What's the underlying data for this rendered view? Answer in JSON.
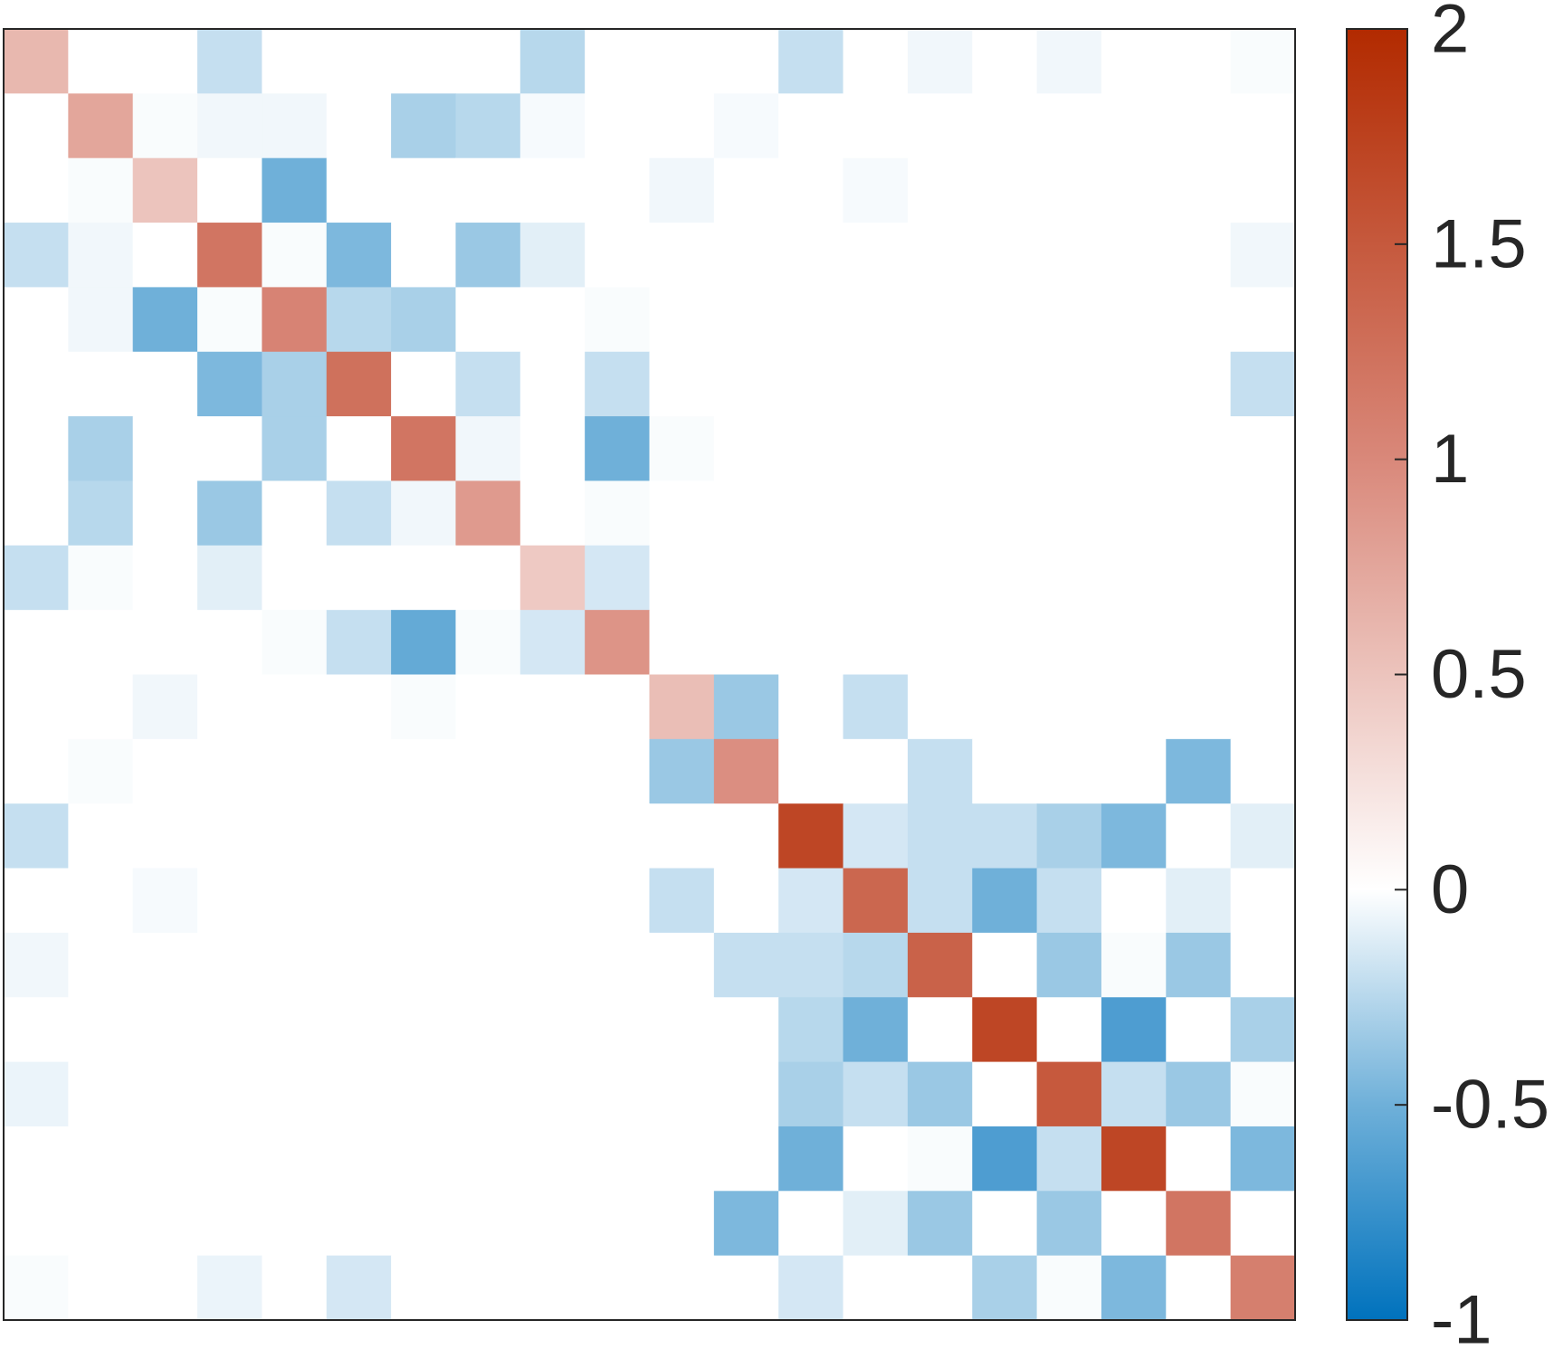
{
  "chart_data": {
    "type": "heatmap",
    "rows": 20,
    "cols": 20,
    "title": "",
    "xlabel": "",
    "ylabel": "",
    "colorbar": {
      "limits": [
        -1,
        2
      ],
      "ticks": [
        {
          "value": 2,
          "label": "2"
        },
        {
          "value": 1.5,
          "label": "1.5"
        },
        {
          "value": 1,
          "label": "1"
        },
        {
          "value": 0.5,
          "label": "0.5"
        },
        {
          "value": 0,
          "label": "0"
        },
        {
          "value": -0.5,
          "label": "-0.5"
        },
        {
          "value": -1,
          "label": "-1"
        }
      ],
      "color_neg": "#0072bd",
      "color_zero": "#ffffff",
      "color_pos": "#b22a00"
    },
    "values": [
      [
        0.6,
        0,
        0,
        -0.2,
        0,
        0,
        0,
        0,
        -0.25,
        0,
        0,
        0,
        -0.2,
        0,
        -0.05,
        0,
        -0.05,
        0,
        0,
        -0.02
      ],
      [
        0,
        0.75,
        -0.02,
        -0.05,
        -0.05,
        0,
        -0.3,
        -0.25,
        -0.03,
        0,
        0,
        -0.03,
        0,
        0,
        0,
        0,
        0,
        0,
        0,
        0
      ],
      [
        0,
        -0.02,
        0.5,
        0,
        -0.5,
        0,
        0,
        0,
        0,
        0,
        -0.05,
        0,
        0,
        -0.03,
        0,
        0,
        0,
        0,
        0,
        0
      ],
      [
        -0.2,
        -0.05,
        0,
        1.2,
        -0.02,
        -0.45,
        0,
        -0.35,
        -0.1,
        0,
        0,
        0,
        0,
        0,
        0,
        0,
        0,
        0,
        0,
        -0.05
      ],
      [
        0,
        -0.05,
        -0.5,
        -0.02,
        1.05,
        -0.25,
        -0.3,
        0,
        0,
        -0.02,
        0,
        0,
        0,
        0,
        0,
        0,
        0,
        0,
        0,
        0
      ],
      [
        0,
        0,
        0,
        -0.45,
        -0.3,
        1.25,
        0,
        -0.2,
        0,
        -0.2,
        0,
        0,
        0,
        0,
        0,
        0,
        0,
        0,
        0,
        -0.2
      ],
      [
        0,
        -0.3,
        0,
        0,
        -0.3,
        0,
        1.2,
        -0.05,
        0,
        -0.5,
        -0.02,
        0,
        0,
        0,
        0,
        0,
        0,
        0,
        0,
        0
      ],
      [
        0,
        -0.25,
        0,
        -0.35,
        0,
        -0.2,
        -0.05,
        0.85,
        0,
        -0.02,
        0,
        0,
        0,
        0,
        0,
        0,
        0,
        0,
        0,
        0
      ],
      [
        -0.2,
        -0.02,
        0,
        -0.1,
        0,
        0,
        0,
        0,
        0.45,
        -0.15,
        0,
        0,
        0,
        0,
        0,
        0,
        0,
        0,
        0,
        0
      ],
      [
        0,
        0,
        0,
        0,
        -0.02,
        -0.2,
        -0.55,
        -0.02,
        -0.15,
        0.9,
        0,
        0,
        0,
        0,
        0,
        0,
        0,
        0,
        0,
        0
      ],
      [
        0,
        0,
        -0.05,
        0,
        0,
        0,
        -0.02,
        0,
        0,
        0,
        0.55,
        -0.35,
        0,
        -0.2,
        0,
        0,
        0,
        0,
        0,
        0
      ],
      [
        0,
        -0.02,
        0,
        0,
        0,
        0,
        0,
        0,
        0,
        0,
        -0.35,
        0.95,
        0,
        0,
        -0.2,
        0,
        0,
        0,
        -0.45,
        0
      ],
      [
        -0.2,
        0,
        0,
        0,
        0,
        0,
        0,
        0,
        0,
        0,
        0,
        0,
        1.7,
        -0.15,
        -0.2,
        -0.2,
        -0.3,
        -0.45,
        0,
        -0.1
      ],
      [
        0,
        0,
        -0.03,
        0,
        0,
        0,
        0,
        0,
        0,
        0,
        -0.2,
        0,
        -0.15,
        1.35,
        -0.2,
        -0.5,
        -0.2,
        0,
        -0.1,
        0
      ],
      [
        -0.05,
        0,
        0,
        0,
        0,
        0,
        0,
        0,
        0,
        0,
        0,
        -0.2,
        -0.2,
        -0.25,
        1.4,
        0,
        -0.35,
        -0.02,
        -0.35,
        0
      ],
      [
        0,
        0,
        0,
        0,
        0,
        0,
        0,
        0,
        0,
        0,
        0,
        0,
        -0.25,
        -0.5,
        0,
        1.7,
        0,
        -0.65,
        0,
        -0.3
      ],
      [
        -0.07,
        0,
        0,
        0,
        0,
        0,
        0,
        0,
        0,
        0,
        0,
        0,
        -0.3,
        -0.2,
        -0.35,
        0,
        1.5,
        -0.2,
        -0.35,
        -0.02
      ],
      [
        0,
        0,
        0,
        0,
        0,
        0,
        0,
        0,
        0,
        0,
        0,
        0,
        -0.5,
        0,
        -0.02,
        -0.65,
        -0.2,
        1.7,
        0,
        -0.45
      ],
      [
        0,
        0,
        0,
        0,
        0,
        0,
        0,
        0,
        0,
        0,
        0,
        -0.45,
        0,
        -0.1,
        -0.35,
        0,
        -0.35,
        0,
        1.2,
        0
      ],
      [
        -0.02,
        0,
        0,
        -0.07,
        0,
        -0.15,
        0,
        0,
        0,
        0,
        0,
        0,
        -0.15,
        0,
        0,
        -0.3,
        -0.02,
        -0.45,
        0,
        1.1
      ]
    ]
  }
}
